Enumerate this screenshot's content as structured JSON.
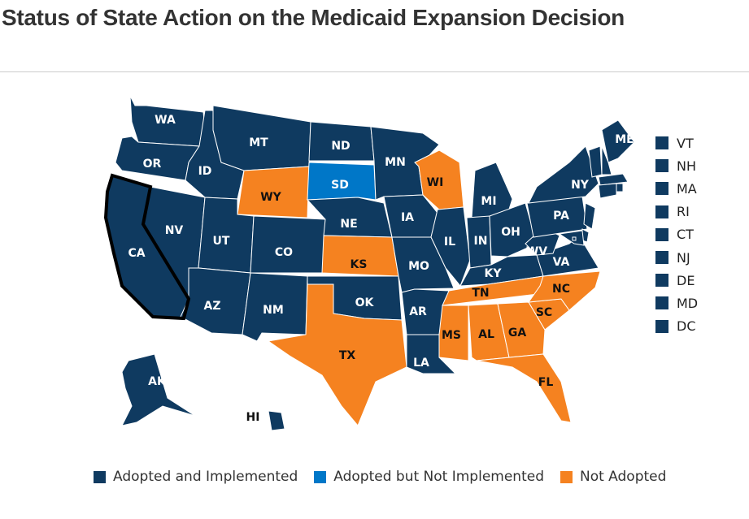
{
  "title": "Status of State Action on the Medicaid Expansion Decision",
  "colors": {
    "adopted_implemented": "#0f3a60",
    "adopted_not_implemented": "#0077c8",
    "not_adopted": "#f58220",
    "label_dark_bg": "#ffffff",
    "label_light_bg": "#111111"
  },
  "legend": [
    {
      "key": "adopted_implemented",
      "label": "Adopted and Implemented"
    },
    {
      "key": "adopted_not_implemented",
      "label": "Adopted but Not Implemented"
    },
    {
      "key": "not_adopted",
      "label": "Not Adopted"
    }
  ],
  "side_legend": [
    "VT",
    "NH",
    "MA",
    "RI",
    "CT",
    "NJ",
    "DE",
    "MD",
    "DC"
  ],
  "highlighted_state": "CA",
  "states": {
    "WA": "adopted_implemented",
    "OR": "adopted_implemented",
    "CA": "adopted_implemented",
    "NV": "adopted_implemented",
    "ID": "adopted_implemented",
    "MT": "adopted_implemented",
    "WY": "not_adopted",
    "UT": "adopted_implemented",
    "AZ": "adopted_implemented",
    "CO": "adopted_implemented",
    "NM": "adopted_implemented",
    "ND": "adopted_implemented",
    "SD": "adopted_not_implemented",
    "NE": "adopted_implemented",
    "KS": "not_adopted",
    "OK": "adopted_implemented",
    "TX": "not_adopted",
    "MN": "adopted_implemented",
    "IA": "adopted_implemented",
    "MO": "adopted_implemented",
    "AR": "adopted_implemented",
    "LA": "adopted_implemented",
    "WI": "not_adopted",
    "IL": "adopted_implemented",
    "MI": "adopted_implemented",
    "IN": "adopted_implemented",
    "OH": "adopted_implemented",
    "KY": "adopted_implemented",
    "TN": "not_adopted",
    "MS": "not_adopted",
    "AL": "not_adopted",
    "GA": "not_adopted",
    "FL": "not_adopted",
    "SC": "not_adopted",
    "NC": "not_adopted",
    "VA": "adopted_implemented",
    "WV": "adopted_implemented",
    "PA": "adopted_implemented",
    "NY": "adopted_implemented",
    "ME": "adopted_implemented",
    "VT": "adopted_implemented",
    "NH": "adopted_implemented",
    "MA": "adopted_implemented",
    "RI": "adopted_implemented",
    "CT": "adopted_implemented",
    "NJ": "adopted_implemented",
    "DE": "adopted_implemented",
    "MD": "adopted_implemented",
    "DC": "adopted_implemented",
    "AK": "adopted_implemented",
    "HI": "adopted_implemented"
  }
}
